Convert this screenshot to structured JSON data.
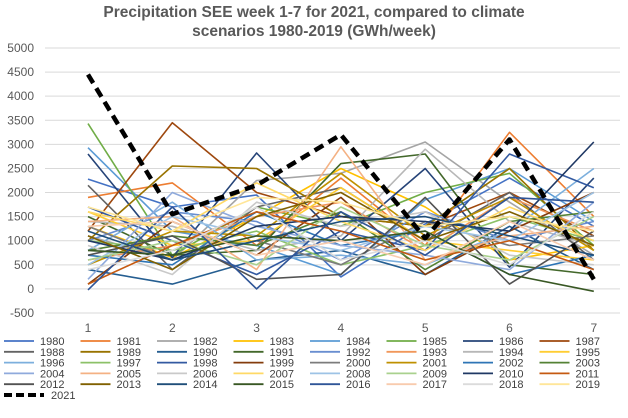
{
  "chart_data": {
    "type": "line",
    "title_lines": [
      "Precipitation SEE week 1-7 for 2021, compared to climate",
      "scenarios 1980-2019 (GWh/week)"
    ],
    "x": [
      1,
      2,
      3,
      4,
      5,
      6,
      7
    ],
    "x_tick_labels": [
      "1",
      "2",
      "3",
      "4",
      "5",
      "6",
      "7"
    ],
    "ylim": [
      -500,
      5000
    ],
    "y_ticks": [
      -500,
      0,
      500,
      1000,
      1500,
      2000,
      2500,
      3000,
      3500,
      4000,
      4500,
      5000
    ],
    "grid": true,
    "legend_position": "bottom",
    "highlight_series": "2021",
    "series": [
      {
        "name": "1980",
        "color": "#4472C4",
        "values": [
          2280,
          1700,
          1950,
          250,
          1350,
          2300,
          1300
        ]
      },
      {
        "name": "1981",
        "color": "#ED7D31",
        "values": [
          1900,
          2200,
          900,
          2300,
          900,
          3250,
          1500
        ]
      },
      {
        "name": "1982",
        "color": "#A5A5A5",
        "values": [
          1100,
          600,
          2250,
          2400,
          3050,
          1800,
          700
        ]
      },
      {
        "name": "1983",
        "color": "#FFC000",
        "values": [
          1300,
          650,
          1500,
          2500,
          1700,
          600,
          900
        ]
      },
      {
        "name": "1984",
        "color": "#5B9BD5",
        "values": [
          2930,
          1200,
          900,
          300,
          1850,
          2500,
          1400
        ]
      },
      {
        "name": "1985",
        "color": "#70AD47",
        "values": [
          3430,
          700,
          1700,
          1300,
          2000,
          2400,
          900
        ]
      },
      {
        "name": "1986",
        "color": "#264478",
        "values": [
          2800,
          650,
          2820,
          1000,
          2500,
          450,
          2300
        ]
      },
      {
        "name": "1987",
        "color": "#9E480E",
        "values": [
          1200,
          3450,
          2000,
          1500,
          1300,
          2000,
          1100
        ]
      },
      {
        "name": "1988",
        "color": "#636363",
        "values": [
          2150,
          400,
          1700,
          2100,
          1000,
          2000,
          600
        ]
      },
      {
        "name": "1989",
        "color": "#997300",
        "values": [
          1000,
          2550,
          2500,
          1500,
          1300,
          2500,
          800
        ]
      },
      {
        "name": "1990",
        "color": "#255E91",
        "values": [
          400,
          100,
          600,
          800,
          300,
          1300,
          400
        ]
      },
      {
        "name": "1991",
        "color": "#43682B",
        "values": [
          1500,
          700,
          800,
          2600,
          2800,
          500,
          300
        ]
      },
      {
        "name": "1992",
        "color": "#698ED0",
        "values": [
          1000,
          1600,
          1400,
          600,
          1600,
          1000,
          1400
        ]
      },
      {
        "name": "1993",
        "color": "#F1975A",
        "values": [
          600,
          900,
          1500,
          1800,
          800,
          1900,
          1200
        ]
      },
      {
        "name": "1994",
        "color": "#B7B7B7",
        "values": [
          1400,
          1300,
          800,
          1100,
          2900,
          1400,
          900
        ]
      },
      {
        "name": "1995",
        "color": "#FFCD33",
        "values": [
          1600,
          900,
          1000,
          2100,
          1000,
          800,
          600
        ]
      },
      {
        "name": "1996",
        "color": "#7CAFDD",
        "values": [
          800,
          1800,
          600,
          700,
          500,
          1200,
          2500
        ]
      },
      {
        "name": "1997",
        "color": "#8CC168",
        "values": [
          1000,
          800,
          1200,
          500,
          900,
          1500,
          1000
        ]
      },
      {
        "name": "1998",
        "color": "#335AA1",
        "values": [
          1700,
          1000,
          300,
          1200,
          800,
          2800,
          2100
        ]
      },
      {
        "name": "1999",
        "color": "#843C0C",
        "values": [
          100,
          1400,
          700,
          1900,
          300,
          1200,
          2000
        ]
      },
      {
        "name": "2000",
        "color": "#7C7C7C",
        "values": [
          1300,
          600,
          1000,
          500,
          1400,
          900,
          1100
        ]
      },
      {
        "name": "2001",
        "color": "#BF9000",
        "values": [
          500,
          1200,
          1100,
          2400,
          1100,
          1900,
          800
        ]
      },
      {
        "name": "2002",
        "color": "#2E75B6",
        "values": [
          700,
          500,
          1600,
          900,
          1200,
          300,
          700
        ]
      },
      {
        "name": "2003",
        "color": "#548235",
        "values": [
          800,
          1100,
          900,
          1600,
          400,
          1400,
          1600
        ]
      },
      {
        "name": "2004",
        "color": "#8FAADC",
        "values": [
          200,
          2000,
          1300,
          900,
          700,
          400,
          1800
        ]
      },
      {
        "name": "2005",
        "color": "#F4B183",
        "values": [
          1400,
          1500,
          400,
          2950,
          600,
          1100,
          1300
        ]
      },
      {
        "name": "2006",
        "color": "#C9C9C9",
        "values": [
          900,
          300,
          1800,
          1300,
          1600,
          700,
          500
        ]
      },
      {
        "name": "2007",
        "color": "#FFD966",
        "values": [
          1600,
          1200,
          2200,
          1400,
          800,
          1700,
          1000
        ]
      },
      {
        "name": "2008",
        "color": "#9DC3E6",
        "values": [
          500,
          1500,
          1100,
          800,
          1300,
          1000,
          2000
        ]
      },
      {
        "name": "2009",
        "color": "#A9D18E",
        "values": [
          600,
          1000,
          500,
          1700,
          900,
          600,
          1500
        ]
      },
      {
        "name": "2010",
        "color": "#1F3864",
        "values": [
          1000,
          600,
          1300,
          1500,
          1400,
          1200,
          3050
        ]
      },
      {
        "name": "2011",
        "color": "#C55A11",
        "values": [
          100,
          900,
          1600,
          1200,
          600,
          1000,
          400
        ]
      },
      {
        "name": "2012",
        "color": "#525252",
        "values": [
          700,
          1100,
          200,
          300,
          1900,
          100,
          1200
        ]
      },
      {
        "name": "2013",
        "color": "#806000",
        "values": [
          1100,
          400,
          1500,
          2000,
          1000,
          1600,
          900
        ]
      },
      {
        "name": "2014",
        "color": "#1F4E79",
        "values": [
          1200,
          600,
          1000,
          1400,
          1500,
          1100,
          700
        ]
      },
      {
        "name": "2015",
        "color": "#385723",
        "values": [
          800,
          700,
          1100,
          1000,
          1200,
          300,
          -50
        ]
      },
      {
        "name": "2016",
        "color": "#2F5597",
        "values": [
          -20,
          1700,
          0,
          1600,
          700,
          1900,
          1800
        ]
      },
      {
        "name": "2017",
        "color": "#F8CBAD",
        "values": [
          1300,
          1400,
          700,
          1000,
          500,
          1400,
          600
        ]
      },
      {
        "name": "2018",
        "color": "#DBDBDB",
        "values": [
          400,
          800,
          1700,
          600,
          1000,
          500,
          1600
        ]
      },
      {
        "name": "2019",
        "color": "#FFE699",
        "values": [
          1700,
          1200,
          1900,
          1800,
          1300,
          1500,
          1200
        ]
      },
      {
        "name": "2021",
        "color": "#000000",
        "dashed": true,
        "values": [
          4450,
          1550,
          2150,
          3200,
          1050,
          3100,
          200
        ]
      }
    ]
  }
}
